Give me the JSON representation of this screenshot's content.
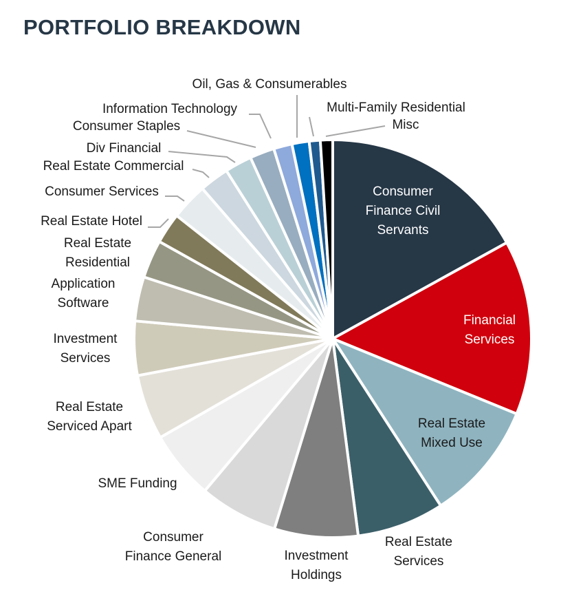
{
  "title": "PORTFOLIO BREAKDOWN",
  "chart_data": {
    "type": "pie",
    "title": "PORTFOLIO BREAKDOWN",
    "start": "top, clockwise",
    "slices": [
      {
        "label": "Consumer Finance Civil Servants",
        "value": 17.0,
        "color": "#263746"
      },
      {
        "label": "Financial Services",
        "value": 14.2,
        "color": "#d0000c"
      },
      {
        "label": "Real Estate Mixed Use",
        "value": 9.7,
        "color": "#8fb4c0"
      },
      {
        "label": "Real Estate Services",
        "value": 7.1,
        "color": "#3b5f69"
      },
      {
        "label": "Investment Holdings",
        "value": 6.8,
        "color": "#7f7f7f"
      },
      {
        "label": "Consumer Finance General",
        "value": 6.4,
        "color": "#d9d9d9"
      },
      {
        "label": "SME Funding",
        "value": 5.6,
        "color": "#efefef"
      },
      {
        "label": "Real Estate Serviced Apart",
        "value": 5.3,
        "color": "#e3e0d8"
      },
      {
        "label": "Investment Services",
        "value": 4.4,
        "color": "#cfcbb9"
      },
      {
        "label": "Application Software",
        "value": 3.6,
        "color": "#bfbdb0"
      },
      {
        "label": "Real Estate Residential",
        "value": 3.1,
        "color": "#969684"
      },
      {
        "label": "Real Estate Hotel",
        "value": 2.5,
        "color": "#817a5a"
      },
      {
        "label": "Consumer Services",
        "value": 3.0,
        "color": "#e6ecee"
      },
      {
        "label": "Real Estate Commercial",
        "value": 2.4,
        "color": "#ccd7df"
      },
      {
        "label": "Div Financial",
        "value": 2.2,
        "color": "#b9d0d6"
      },
      {
        "label": "Consumer Staples",
        "value": 2.0,
        "color": "#98adbf"
      },
      {
        "label": "Information Technology",
        "value": 1.5,
        "color": "#8ea9db"
      },
      {
        "label": "Oil, Gas & Consumerables",
        "value": 1.4,
        "color": "#0070c0"
      },
      {
        "label": "Multi-Family Residential",
        "value": 0.9,
        "color": "#1f5a8f"
      },
      {
        "label": "Misc",
        "value": 1.0,
        "color": "#000000"
      }
    ]
  }
}
